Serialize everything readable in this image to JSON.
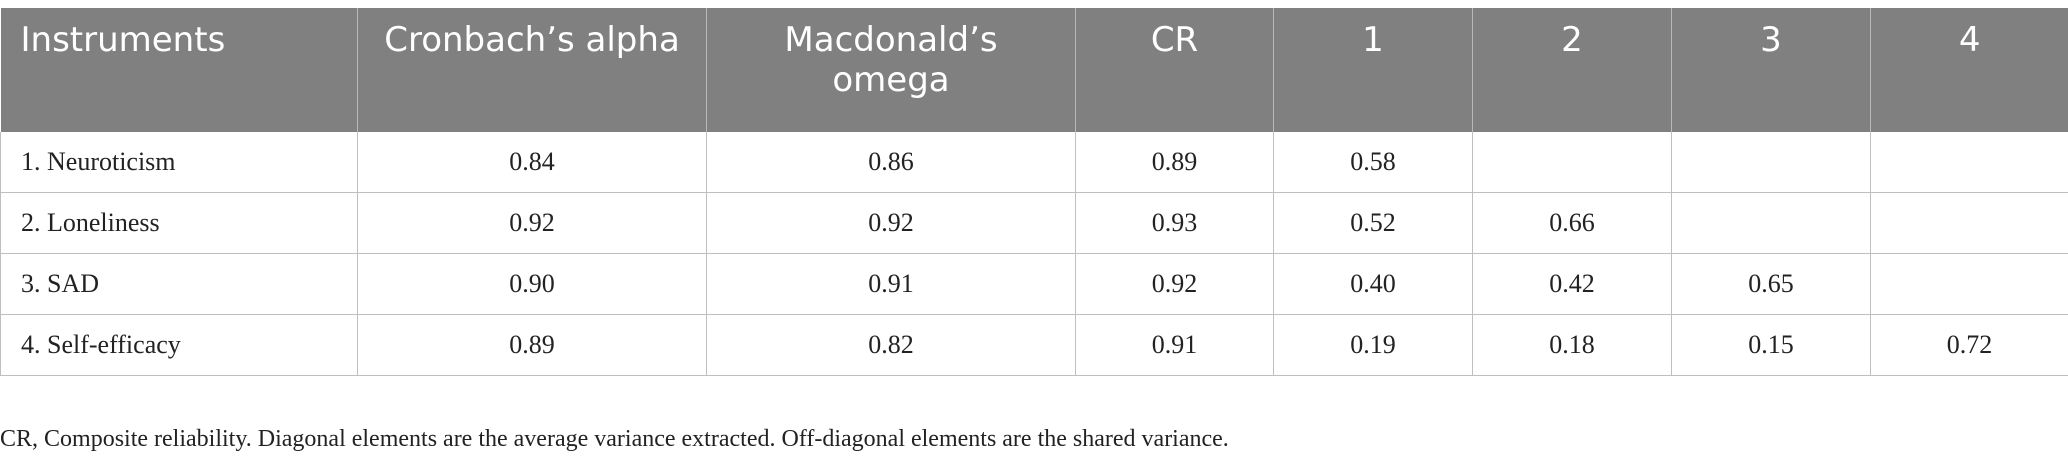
{
  "table": {
    "headers": [
      "Instruments",
      "Cronbach’s alpha",
      "Macdonald’s omega",
      "CR",
      "1",
      "2",
      "3",
      "4"
    ],
    "rows": [
      [
        "1. Neuroticism",
        "0.84",
        "0.86",
        "0.89",
        "0.58",
        "",
        "",
        ""
      ],
      [
        "2. Loneliness",
        "0.92",
        "0.92",
        "0.93",
        "0.52",
        "0.66",
        "",
        ""
      ],
      [
        "3. SAD",
        "0.90",
        "0.91",
        "0.92",
        "0.40",
        "0.42",
        "0.65",
        ""
      ],
      [
        "4. Self-efficacy",
        "0.89",
        "0.82",
        "0.91",
        "0.19",
        "0.18",
        "0.15",
        "0.72"
      ]
    ]
  },
  "footnote": "CR, Composite reliability. Diagonal elements are the average variance extracted. Off-diagonal elements are the shared variance."
}
